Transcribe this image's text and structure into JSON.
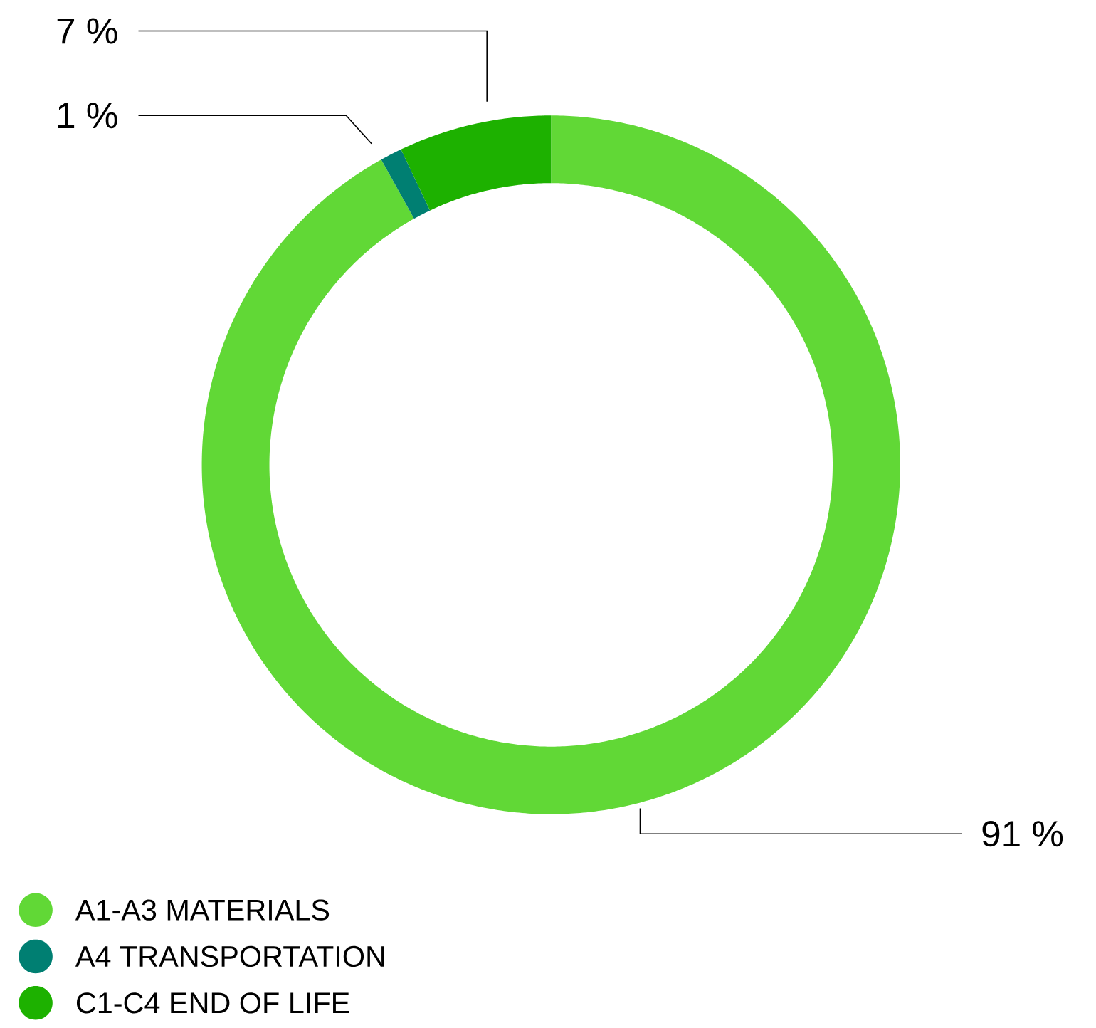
{
  "chart_data": {
    "type": "donut",
    "categories": [
      "A1-A3 MATERIALS",
      "A4 TRANSPORTATION",
      "C1-C4 END OF LIFE"
    ],
    "values": [
      91,
      1,
      7
    ],
    "value_labels": [
      "91 %",
      "1 %",
      "7 %"
    ],
    "colors": [
      "#61d836",
      "#007f72",
      "#1db100"
    ],
    "legend": "bottom"
  }
}
